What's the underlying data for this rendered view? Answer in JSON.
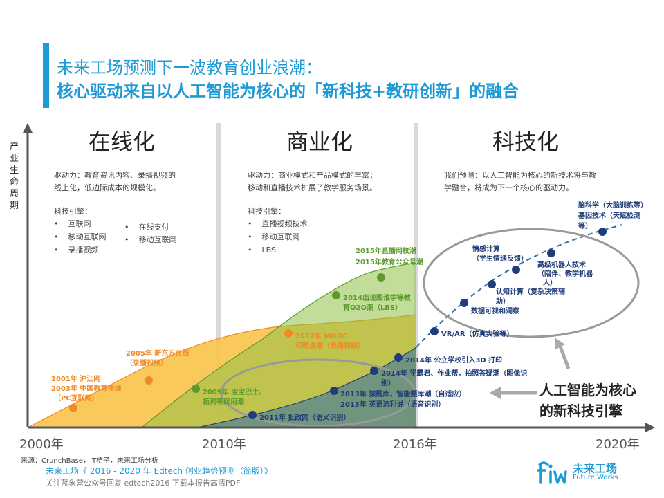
{
  "title": {
    "line1": "未来工场预测下一波教育创业浪潮：",
    "line2": "核心驱动来自以人工智能为核心的「新科技+教研创新」的融合"
  },
  "y_axis_label": "产业生命周期",
  "x_axis_years": [
    "2000年",
    "2010年",
    "2016年",
    "2020年"
  ],
  "eras": [
    {
      "name": "在线化",
      "driver": [
        "驱动力：教育资讯内容、录播视频的",
        "线上化，低边际成本的规模化。"
      ],
      "engine_title": "科技引擎：",
      "engines_col1": [
        "互联网",
        "移动互联网",
        "录播视频"
      ],
      "engines_col2": [
        "在线支付",
        "移动互联网"
      ]
    },
    {
      "name": "商业化",
      "driver": [
        "驱动力：商业模式和产品模式的丰富；",
        "移动和直播技术扩展了教学服务场景。"
      ],
      "engine_title": "科技引擎：",
      "engines_col1": [
        "直播视频技术",
        "移动互联网",
        "LBS"
      ]
    },
    {
      "name": "科技化",
      "driver": [
        "我们预测：以人工智能为核心的新技术将与教",
        "学融合，将成为下一个核心的驱动力。"
      ]
    }
  ],
  "orange_events": [
    {
      "lines": [
        "2001年 沪江网",
        "2003年 中国教育在线",
        "（PC互联网）"
      ]
    },
    {
      "lines": [
        "2005年 新东方在线",
        "（录播视频）"
      ]
    },
    {
      "lines": [
        "2012年 MOOC",
        "和微课潮（录播视频）"
      ]
    }
  ],
  "green_events": [
    {
      "lines": [
        "2009年 宝宝巴士、",
        "拓词等应用潮"
      ]
    },
    {
      "lines": [
        "2014出现跟谁学等教",
        "育O2O潮（LBS）"
      ]
    },
    {
      "lines": [
        "2015年直播网校潮",
        "2015年教育公众号潮"
      ]
    }
  ],
  "navy_events": [
    {
      "lines": [
        "2011年 批改网（语义识别）"
      ]
    },
    {
      "lines": [
        "2013年 猿题库，智能题库潮（自适应）",
        "2013年 英语流利说（语音识别）"
      ]
    },
    {
      "lines": [
        "2014年 学霸君、作业帮，拍照答疑潮（图像识",
        "别）"
      ]
    },
    {
      "lines": [
        "2014年 公立学校引入3D 打印"
      ]
    },
    {
      "lines": [
        "VR/AR（仿真实验等）"
      ]
    },
    {
      "lines": [
        "数据可视和洞察"
      ]
    },
    {
      "lines": [
        "认知计算（复杂决策辅",
        "助）"
      ]
    },
    {
      "lines": [
        "情感计算",
        "（学生情绪反馈）"
      ]
    },
    {
      "lines": [
        "高级机器人技术",
        "（陪伴、教学机器",
        "人）"
      ]
    },
    {
      "lines": [
        "脑科学（大脑训练等）",
        "基因技术（天赋检测",
        "等）"
      ]
    }
  ],
  "callout": [
    "人工智能为核心",
    "的新科技引擎"
  ],
  "footer": {
    "source": "来源：CrunchBase，IT桔子，未来工场分析",
    "report": "未来工场《 2016 - 2020 年 Edtech 创业趋势预测（简版）》",
    "note": "关注蓝象营公众号回复 edtech2016 下载本报告高清PDF"
  },
  "logo": {
    "cn": "未来工场",
    "en": "Future Works"
  },
  "colors": {
    "accent": "#1e9ad6",
    "orange": "#f08a24",
    "green": "#5b9a2b",
    "navy": "#1f3d7a",
    "divider": "#d9d9d9"
  }
}
